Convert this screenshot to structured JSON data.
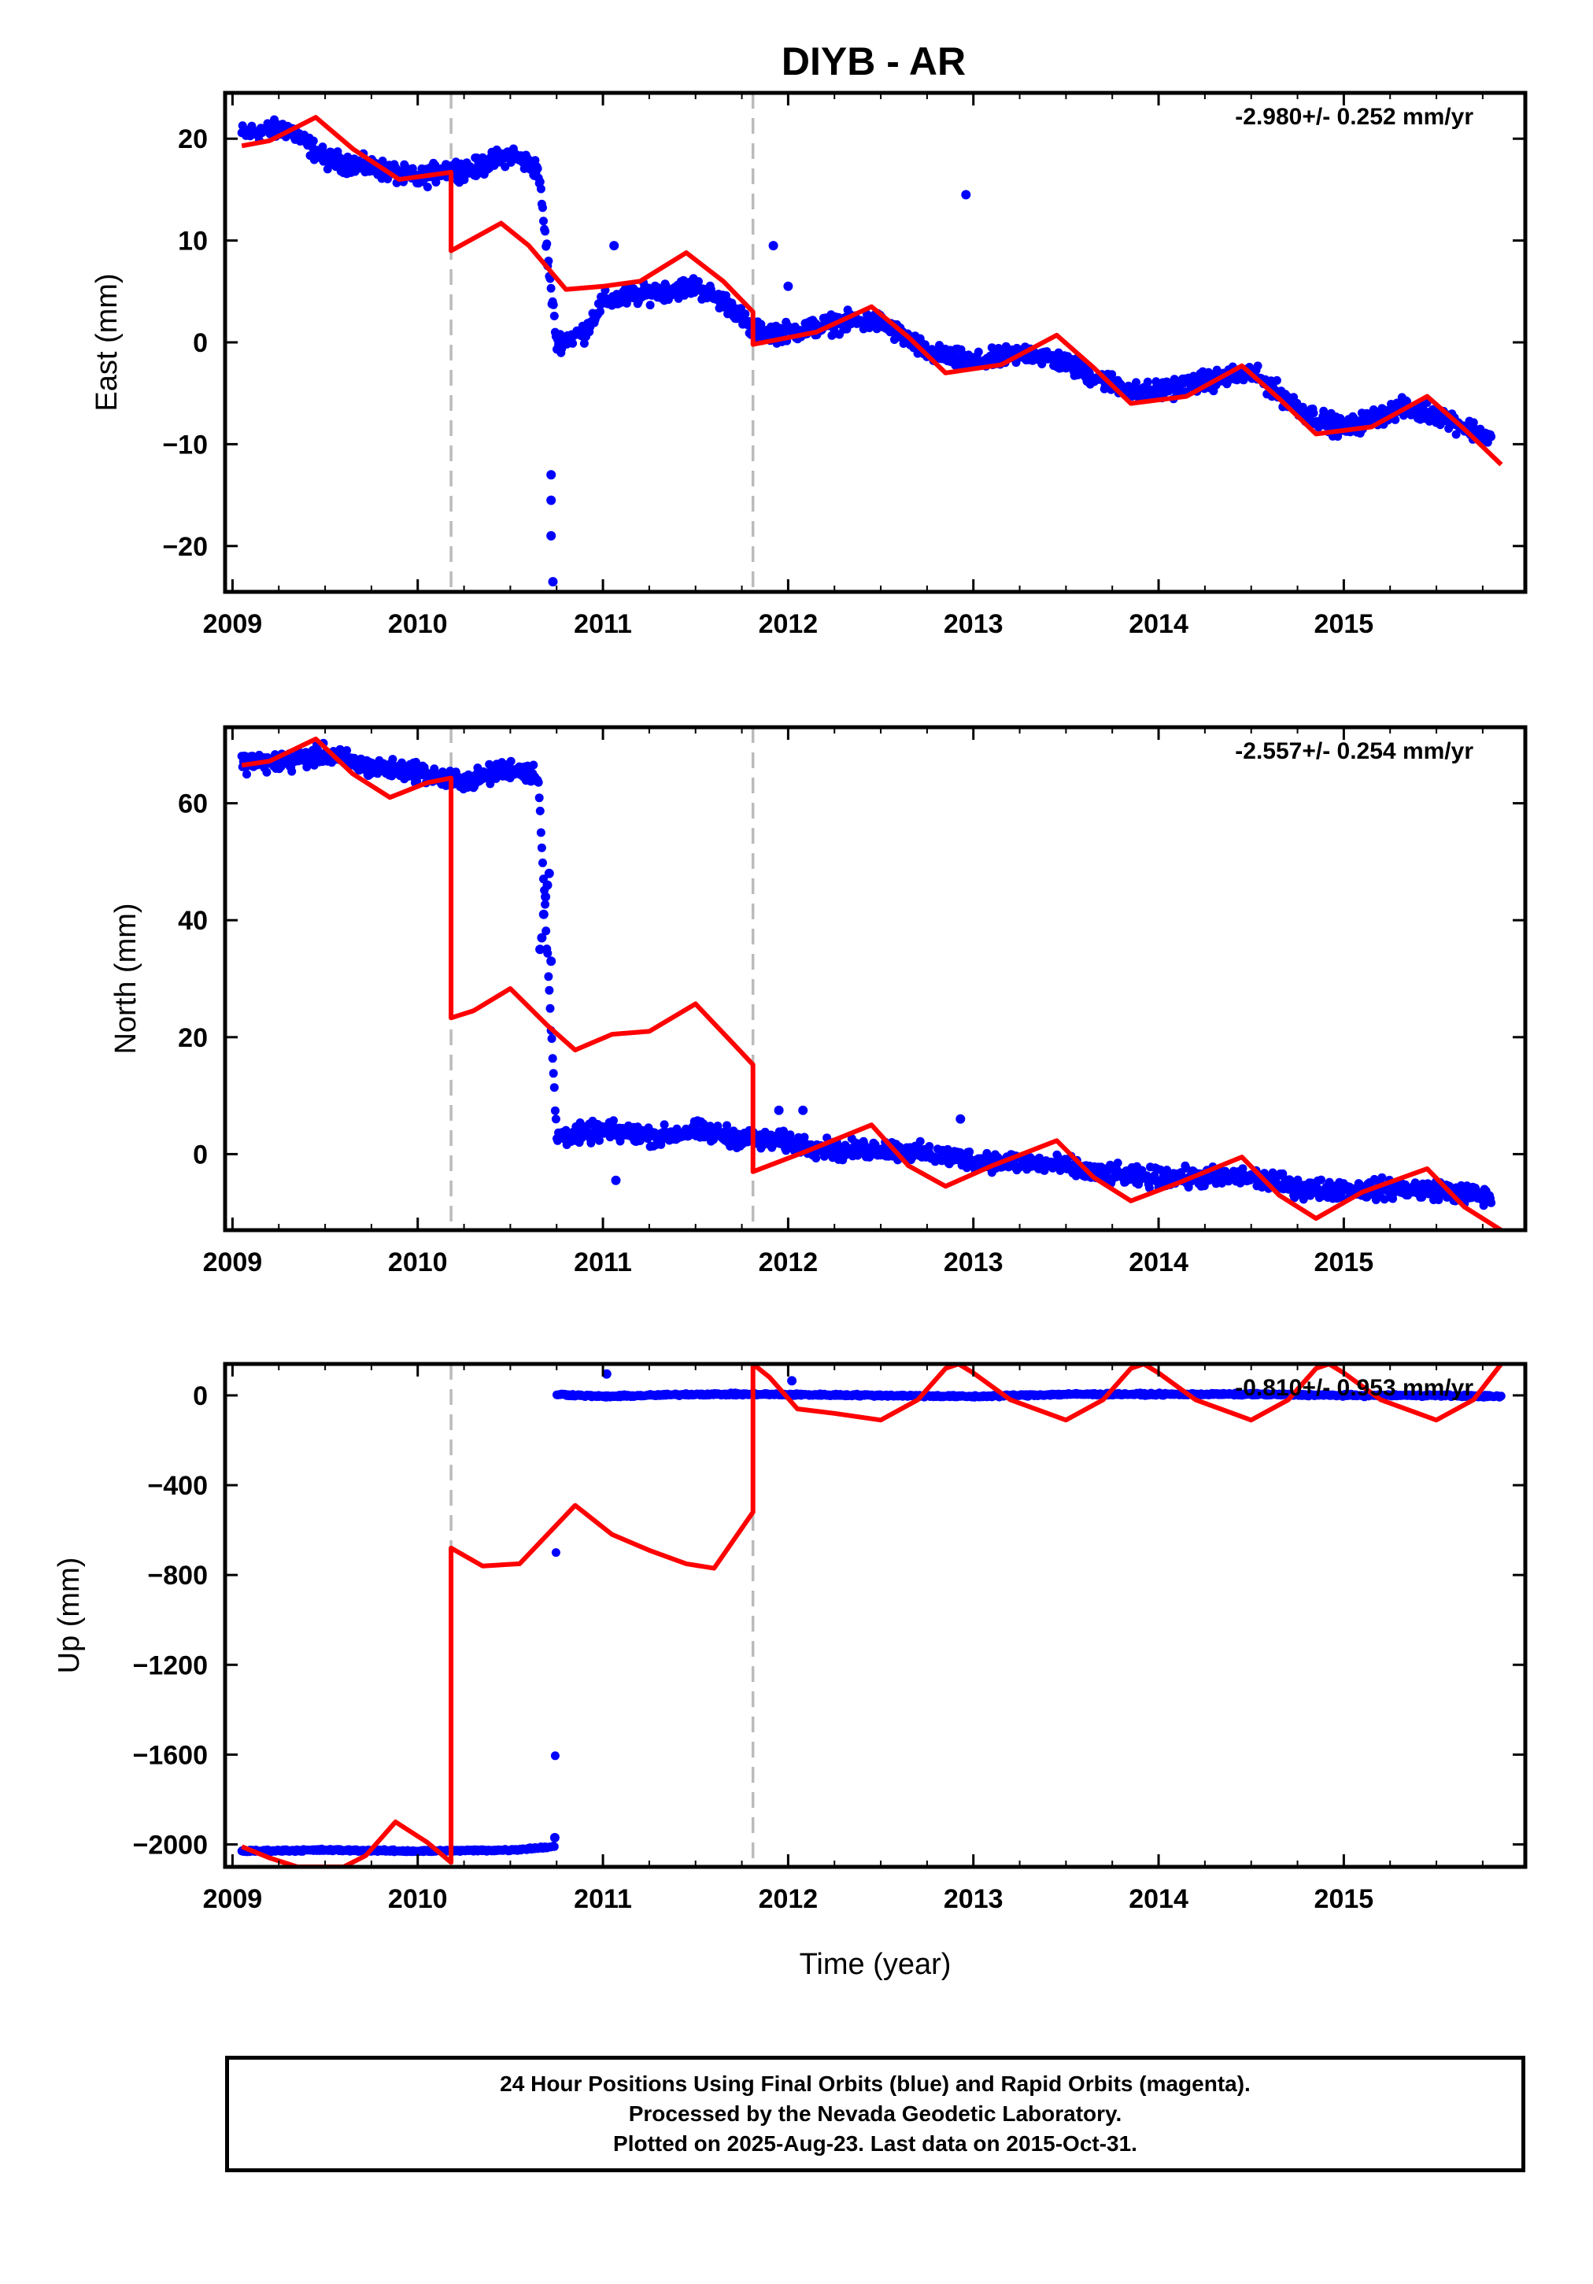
{
  "chart_data": {
    "title": "DIYB - AR",
    "type": "scatter",
    "xlabel": "Time (year)",
    "x_ticks": [
      2009,
      2010,
      2011,
      2012,
      2013,
      2014,
      2015
    ],
    "xlim": [
      2008.96,
      2015.98
    ],
    "discontinuities": [
      2010.18,
      2011.81
    ],
    "colors": {
      "observations": "#0000ff",
      "model": "#ff0000",
      "discontinuity": "#bbbbbb"
    },
    "grid": false,
    "legend": "none",
    "panels": [
      {
        "component": "East",
        "ylabel": "East (mm)",
        "ylim": [
          -24.5,
          24.5
        ],
        "y_ticks": [
          -20,
          -10,
          0,
          10,
          20
        ],
        "rate_label": "-2.980+/- 0.252 mm/yr",
        "observations": {
          "name": "24 Hour Positions (Final Orbits)",
          "approx_level": [
            [
              2009.05,
              20.5
            ],
            [
              2009.3,
              21
            ],
            [
              2009.5,
              18
            ],
            [
              2009.8,
              17
            ],
            [
              2010.0,
              16
            ],
            [
              2010.15,
              17
            ],
            [
              2010.3,
              17
            ],
            [
              2010.5,
              18.5
            ],
            [
              2010.65,
              17
            ],
            [
              2010.75,
              0
            ],
            [
              2010.9,
              1
            ],
            [
              2011.0,
              4
            ],
            [
              2011.3,
              5
            ],
            [
              2011.5,
              5.5
            ],
            [
              2011.7,
              3.5
            ],
            [
              2011.81,
              1
            ],
            [
              2012.0,
              1
            ],
            [
              2012.3,
              2
            ],
            [
              2012.5,
              2
            ],
            [
              2012.75,
              -1
            ],
            [
              2013.0,
              -2
            ],
            [
              2013.3,
              -1
            ],
            [
              2013.5,
              -2
            ],
            [
              2013.6,
              -3
            ],
            [
              2013.9,
              -5
            ],
            [
              2014.2,
              -4
            ],
            [
              2014.5,
              -3
            ],
            [
              2014.8,
              -7
            ],
            [
              2015.0,
              -8.5
            ],
            [
              2015.3,
              -6.5
            ],
            [
              2015.5,
              -7
            ],
            [
              2015.8,
              -9.5
            ]
          ],
          "outliers": [
            [
              2010.72,
              -13
            ],
            [
              2010.72,
              -15.5
            ],
            [
              2010.72,
              -19
            ],
            [
              2010.73,
              -23.5
            ],
            [
              2011.06,
              9.5
            ],
            [
              2011.92,
              9.5
            ],
            [
              2012.0,
              5.5
            ],
            [
              2012.96,
              14.5
            ]
          ]
        },
        "model": [
          [
            2009.05,
            19.3
          ],
          [
            2009.2,
            19.8
          ],
          [
            2009.45,
            22.1
          ],
          [
            2009.65,
            19
          ],
          [
            2009.9,
            16
          ],
          [
            2010.18,
            16.7
          ],
          [
            2010.18,
            9
          ],
          [
            2010.45,
            11.7
          ],
          [
            2010.6,
            9.5
          ],
          [
            2010.8,
            5.2
          ],
          [
            2011.0,
            5.5
          ],
          [
            2011.2,
            6
          ],
          [
            2011.45,
            8.8
          ],
          [
            2011.65,
            6
          ],
          [
            2011.81,
            3
          ],
          [
            2011.81,
            -0.2
          ],
          [
            2012.15,
            1
          ],
          [
            2012.45,
            3.5
          ],
          [
            2012.65,
            0.5
          ],
          [
            2012.85,
            -3
          ],
          [
            2013.15,
            -2.2
          ],
          [
            2013.45,
            0.7
          ],
          [
            2013.65,
            -2.5
          ],
          [
            2013.85,
            -6
          ],
          [
            2014.15,
            -5.3
          ],
          [
            2014.45,
            -2.3
          ],
          [
            2014.65,
            -5.5
          ],
          [
            2014.85,
            -9
          ],
          [
            2015.15,
            -8.3
          ],
          [
            2015.45,
            -5.3
          ],
          [
            2015.65,
            -8.5
          ],
          [
            2015.85,
            -12
          ]
        ]
      },
      {
        "component": "North",
        "ylabel": "North (mm)",
        "ylim": [
          -13,
          73
        ],
        "y_ticks": [
          0,
          20,
          40,
          60
        ],
        "rate_label": "-2.557+/- 0.254 mm/yr",
        "observations": {
          "name": "24 Hour Positions (Final Orbits)",
          "approx_level": [
            [
              2009.05,
              67
            ],
            [
              2009.3,
              67
            ],
            [
              2009.5,
              68.5
            ],
            [
              2009.75,
              66
            ],
            [
              2010.0,
              65.5
            ],
            [
              2010.15,
              64
            ],
            [
              2010.3,
              64
            ],
            [
              2010.5,
              66
            ],
            [
              2010.65,
              65
            ],
            [
              2010.75,
              3
            ],
            [
              2010.9,
              3.5
            ],
            [
              2011.0,
              4
            ],
            [
              2011.3,
              3
            ],
            [
              2011.5,
              4
            ],
            [
              2011.7,
              3
            ],
            [
              2011.81,
              2.5
            ],
            [
              2012.0,
              2
            ],
            [
              2012.3,
              0.5
            ],
            [
              2012.5,
              1
            ],
            [
              2012.75,
              0
            ],
            [
              2013.0,
              -1
            ],
            [
              2013.3,
              -1.5
            ],
            [
              2013.5,
              -2
            ],
            [
              2013.6,
              -3
            ],
            [
              2013.9,
              -4
            ],
            [
              2014.2,
              -4
            ],
            [
              2014.5,
              -4
            ],
            [
              2014.8,
              -6
            ],
            [
              2015.0,
              -6
            ],
            [
              2015.3,
              -6
            ],
            [
              2015.5,
              -6
            ],
            [
              2015.8,
              -7.5
            ]
          ],
          "outliers": [
            [
              2010.66,
              35
            ],
            [
              2010.67,
              37
            ],
            [
              2010.68,
              41
            ],
            [
              2010.69,
              44
            ],
            [
              2010.7,
              46
            ],
            [
              2010.71,
              48
            ],
            [
              2010.72,
              33
            ],
            [
              2011.07,
              -4.5
            ],
            [
              2011.95,
              7.5
            ],
            [
              2012.08,
              7.5
            ],
            [
              2012.93,
              6
            ]
          ]
        },
        "model": [
          [
            2009.05,
            66.5
          ],
          [
            2009.2,
            67.2
          ],
          [
            2009.45,
            71
          ],
          [
            2009.65,
            65
          ],
          [
            2009.85,
            61
          ],
          [
            2010.05,
            63.5
          ],
          [
            2010.18,
            64.3
          ],
          [
            2010.18,
            23.3
          ],
          [
            2010.3,
            24.5
          ],
          [
            2010.5,
            28.3
          ],
          [
            2010.7,
            22
          ],
          [
            2010.85,
            17.8
          ],
          [
            2011.05,
            20.5
          ],
          [
            2011.25,
            21
          ],
          [
            2011.5,
            25.7
          ],
          [
            2011.7,
            19
          ],
          [
            2011.81,
            15.3
          ],
          [
            2011.81,
            -3
          ],
          [
            2012.1,
            0.5
          ],
          [
            2012.45,
            5
          ],
          [
            2012.65,
            -2
          ],
          [
            2012.85,
            -5.5
          ],
          [
            2013.1,
            -2
          ],
          [
            2013.45,
            2.3
          ],
          [
            2013.65,
            -4
          ],
          [
            2013.85,
            -8
          ],
          [
            2014.1,
            -5
          ],
          [
            2014.45,
            -0.5
          ],
          [
            2014.65,
            -7
          ],
          [
            2014.85,
            -11
          ],
          [
            2015.1,
            -6.5
          ],
          [
            2015.45,
            -2.5
          ],
          [
            2015.65,
            -9
          ],
          [
            2015.85,
            -13
          ]
        ]
      },
      {
        "component": "Up",
        "ylabel": "Up (mm)",
        "ylim": [
          -2100,
          140
        ],
        "y_ticks": [
          -2000,
          -1600,
          -1200,
          -800,
          -400,
          0
        ],
        "rate_label": "-0.810+/- 0.953 mm/yr",
        "observations": {
          "name": "24 Hour Positions (Final Orbits)",
          "approx_level": [
            [
              2009.05,
              -2030
            ],
            [
              2009.5,
              -2025
            ],
            [
              2010.0,
              -2030
            ],
            [
              2010.5,
              -2025
            ],
            [
              2010.74,
              -2010
            ],
            [
              2010.75,
              5
            ],
            [
              2011.0,
              -5
            ],
            [
              2011.5,
              5
            ],
            [
              2011.81,
              5
            ],
            [
              2012.5,
              0
            ],
            [
              2013.0,
              -5
            ],
            [
              2013.5,
              5
            ],
            [
              2013.9,
              5
            ],
            [
              2014.5,
              5
            ],
            [
              2015.0,
              0
            ],
            [
              2015.5,
              0
            ],
            [
              2015.85,
              -5
            ]
          ],
          "outliers": [
            [
              2010.74,
              -1970
            ],
            [
              2011.02,
              95
            ],
            [
              2012.02,
              65
            ]
          ]
        },
        "model": [
          [
            2009.05,
            -2010
          ],
          [
            2009.2,
            -2060
          ],
          [
            2009.35,
            -2100
          ],
          [
            2009.6,
            -2100
          ],
          [
            2009.72,
            -2050
          ],
          [
            2009.88,
            -1900
          ],
          [
            2010.05,
            -1990
          ],
          [
            2010.18,
            -2080
          ],
          [
            2010.18,
            -680
          ],
          [
            2010.35,
            -760
          ],
          [
            2010.55,
            -750
          ],
          [
            2010.85,
            -490
          ],
          [
            2011.05,
            -620
          ],
          [
            2011.25,
            -690
          ],
          [
            2011.45,
            -750
          ],
          [
            2011.6,
            -770
          ],
          [
            2011.81,
            -520
          ],
          [
            2011.81,
            140
          ],
          [
            2011.9,
            80
          ],
          [
            2012.05,
            -60
          ],
          [
            2012.25,
            -80
          ],
          [
            2012.5,
            -110
          ],
          [
            2012.7,
            -20
          ],
          [
            2012.85,
            120
          ],
          [
            2012.92,
            140
          ],
          [
            2013.0,
            100
          ],
          [
            2013.2,
            -20
          ],
          [
            2013.5,
            -110
          ],
          [
            2013.7,
            -20
          ],
          [
            2013.85,
            120
          ],
          [
            2013.92,
            140
          ],
          [
            2014.0,
            100
          ],
          [
            2014.2,
            -20
          ],
          [
            2014.5,
            -110
          ],
          [
            2014.7,
            -20
          ],
          [
            2014.85,
            120
          ],
          [
            2014.92,
            140
          ],
          [
            2015.0,
            100
          ],
          [
            2015.2,
            -20
          ],
          [
            2015.5,
            -110
          ],
          [
            2015.7,
            -20
          ],
          [
            2015.85,
            140
          ]
        ]
      }
    ]
  },
  "footer": {
    "line1": "24 Hour Positions Using Final Orbits (blue) and Rapid Orbits (magenta).",
    "line2": "Processed by the Nevada Geodetic Laboratory.",
    "line3": "Plotted on 2025-Aug-23. Last data on 2015-Oct-31."
  }
}
